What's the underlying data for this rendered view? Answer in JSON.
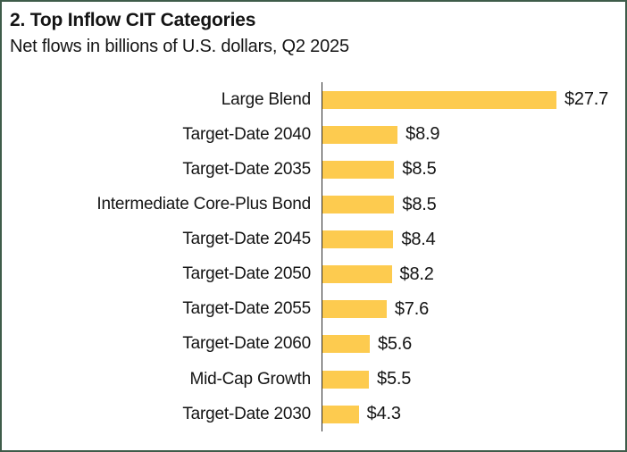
{
  "header": {
    "title": "2. Top Inflow CIT Categories",
    "subtitle": "Net flows in billions of U.S. dollars, Q2 2025"
  },
  "chart_data": {
    "type": "bar",
    "orientation": "horizontal",
    "title": "2. Top Inflow CIT Categories",
    "subtitle": "Net flows in billions of U.S. dollars, Q2 2025",
    "xlabel": "",
    "ylabel": "",
    "categories": [
      "Large Blend",
      "Target-Date 2040",
      "Target-Date 2035",
      "Intermediate Core-Plus Bond",
      "Target-Date 2045",
      "Target-Date 2050",
      "Target-Date 2055",
      "Target-Date 2060",
      "Mid-Cap Growth",
      "Target-Date 2030"
    ],
    "values": [
      27.7,
      8.9,
      8.5,
      8.5,
      8.4,
      8.2,
      7.6,
      5.6,
      5.5,
      4.3
    ],
    "value_labels": [
      "$27.7",
      "$8.9",
      "$8.5",
      "$8.5",
      "$8.4",
      "$8.2",
      "$7.6",
      "$5.6",
      "$5.5",
      "$4.3"
    ],
    "xlim": [
      0,
      30
    ],
    "grid": false,
    "legend": false,
    "bar_color": "#FDCB4F",
    "axis_color": "#2b2b2b",
    "text_color": "#141414",
    "frame_border_color": "#3E5C4A"
  }
}
